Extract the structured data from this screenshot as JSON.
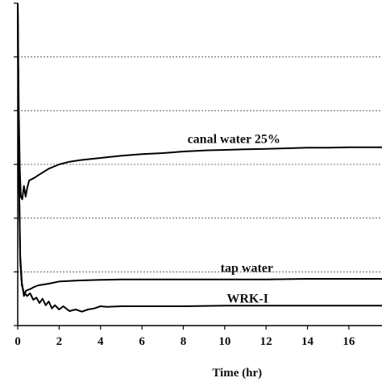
{
  "chart_data": {
    "type": "line",
    "title": "",
    "xlabel": "Time (hr)",
    "ylabel": "",
    "xlim": [
      0,
      17.6
    ],
    "ylim": [
      0,
      6
    ],
    "x_ticks": [
      0,
      2,
      4,
      6,
      8,
      10,
      12,
      14,
      16
    ],
    "x_tick_labels": [
      "0",
      "2",
      "4",
      "6",
      "8",
      "10",
      "12",
      "14",
      "16"
    ],
    "grid": {
      "horizontal": true,
      "style": "dotted",
      "values": [
        1,
        2,
        3,
        4,
        5
      ]
    },
    "legend": "none",
    "series": [
      {
        "name": "canal water 25%",
        "label_at": [
          8.2,
          3.4
        ],
        "points": [
          [
            0.0,
            6.0
          ],
          [
            0.05,
            4.0
          ],
          [
            0.1,
            2.9
          ],
          [
            0.15,
            2.4
          ],
          [
            0.22,
            2.35
          ],
          [
            0.3,
            2.6
          ],
          [
            0.38,
            2.4
          ],
          [
            0.45,
            2.55
          ],
          [
            0.55,
            2.7
          ],
          [
            0.8,
            2.75
          ],
          [
            1.0,
            2.8
          ],
          [
            1.5,
            2.92
          ],
          [
            2.0,
            3.0
          ],
          [
            2.5,
            3.05
          ],
          [
            3.0,
            3.08
          ],
          [
            4.0,
            3.12
          ],
          [
            5.0,
            3.16
          ],
          [
            6.0,
            3.19
          ],
          [
            7.0,
            3.21
          ],
          [
            8.0,
            3.24
          ],
          [
            9.0,
            3.26
          ],
          [
            10.0,
            3.27
          ],
          [
            11.0,
            3.28
          ],
          [
            12.0,
            3.29
          ],
          [
            13.0,
            3.3
          ],
          [
            14.0,
            3.31
          ],
          [
            15.0,
            3.31
          ],
          [
            16.0,
            3.32
          ],
          [
            17.6,
            3.32
          ]
        ]
      },
      {
        "name": "tap water",
        "label_at": [
          9.8,
          1.0
        ],
        "points": [
          [
            0.0,
            6.0
          ],
          [
            0.05,
            3.0
          ],
          [
            0.12,
            1.3
          ],
          [
            0.2,
            0.8
          ],
          [
            0.3,
            0.55
          ],
          [
            0.4,
            0.65
          ],
          [
            0.6,
            0.68
          ],
          [
            0.8,
            0.72
          ],
          [
            1.0,
            0.75
          ],
          [
            1.5,
            0.78
          ],
          [
            2.0,
            0.82
          ],
          [
            3.0,
            0.84
          ],
          [
            4.0,
            0.85
          ],
          [
            5.0,
            0.86
          ],
          [
            6.0,
            0.86
          ],
          [
            8.0,
            0.86
          ],
          [
            10.0,
            0.86
          ],
          [
            12.0,
            0.86
          ],
          [
            14.0,
            0.87
          ],
          [
            16.0,
            0.87
          ],
          [
            17.6,
            0.87
          ]
        ]
      },
      {
        "name": "WRK-I",
        "label_at": [
          10.1,
          0.43
        ],
        "points": [
          [
            0.0,
            6.0
          ],
          [
            0.05,
            3.0
          ],
          [
            0.12,
            1.2
          ],
          [
            0.2,
            0.75
          ],
          [
            0.3,
            0.62
          ],
          [
            0.45,
            0.55
          ],
          [
            0.6,
            0.6
          ],
          [
            0.75,
            0.48
          ],
          [
            0.9,
            0.52
          ],
          [
            1.05,
            0.42
          ],
          [
            1.2,
            0.5
          ],
          [
            1.35,
            0.38
          ],
          [
            1.5,
            0.45
          ],
          [
            1.65,
            0.32
          ],
          [
            1.8,
            0.38
          ],
          [
            2.0,
            0.3
          ],
          [
            2.2,
            0.36
          ],
          [
            2.5,
            0.27
          ],
          [
            2.8,
            0.3
          ],
          [
            3.1,
            0.26
          ],
          [
            3.4,
            0.3
          ],
          [
            3.7,
            0.32
          ],
          [
            4.0,
            0.36
          ],
          [
            4.3,
            0.35
          ],
          [
            5.0,
            0.36
          ],
          [
            6.0,
            0.36
          ],
          [
            8.0,
            0.36
          ],
          [
            10.0,
            0.37
          ],
          [
            12.0,
            0.37
          ],
          [
            14.0,
            0.37
          ],
          [
            16.0,
            0.37
          ],
          [
            17.6,
            0.37
          ]
        ]
      }
    ]
  }
}
